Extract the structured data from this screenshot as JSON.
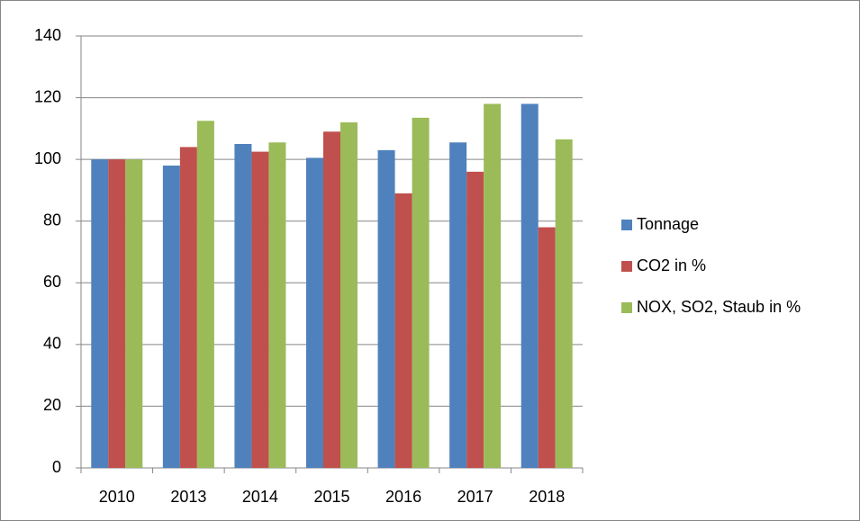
{
  "chart_data": {
    "type": "bar",
    "categories": [
      "2010",
      "2013",
      "2014",
      "2015",
      "2016",
      "2017",
      "2018"
    ],
    "series": [
      {
        "name": "Tonnage",
        "color": "#4f81bd",
        "values": [
          100,
          98,
          105,
          100.5,
          103,
          105.5,
          118
        ]
      },
      {
        "name": "CO2 in %",
        "color": "#c0504d",
        "values": [
          100,
          104,
          102.5,
          109,
          89,
          96,
          78
        ]
      },
      {
        "name": "NOX, SO2, Staub in %",
        "color": "#9bbb59",
        "values": [
          100,
          112.5,
          105.5,
          112,
          113.5,
          118,
          106.5
        ]
      }
    ],
    "ylim": [
      0,
      140
    ],
    "yticks": [
      0,
      20,
      40,
      60,
      80,
      100,
      120,
      140
    ],
    "grid": true,
    "legend": "right"
  }
}
